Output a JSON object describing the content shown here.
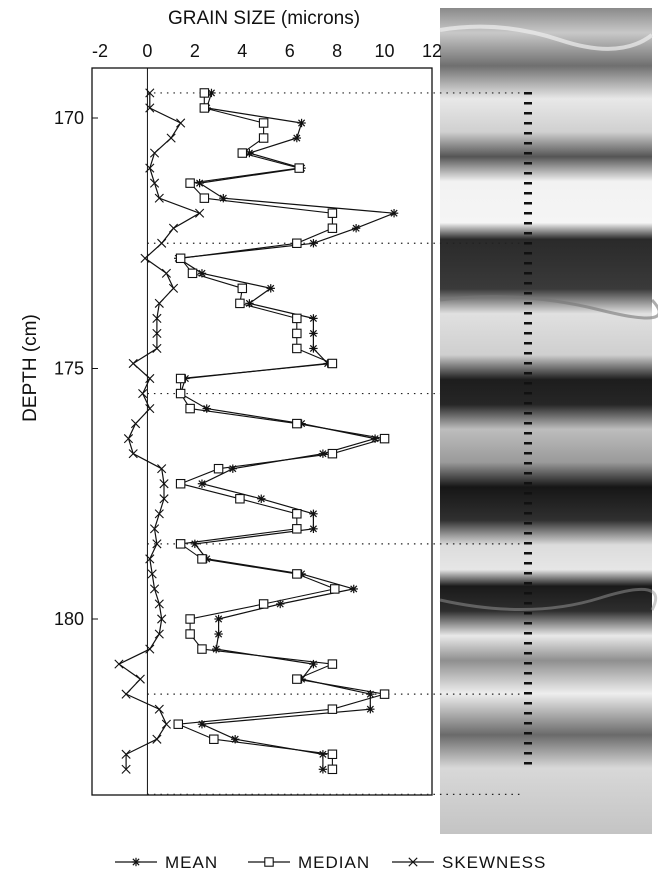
{
  "chart_data": {
    "type": "line",
    "title": "",
    "xlabel": "GRAIN SIZE (microns)",
    "ylabel": "DEPTH (cm)",
    "x_axis_position": "top",
    "y_inverted": true,
    "xlim": [
      -2,
      12
    ],
    "ylim": [
      168.5,
      184
    ],
    "x_ticks": [
      "-2",
      "0",
      "2",
      "4",
      "6",
      "8",
      "10",
      "12"
    ],
    "y_ticks": [
      "170",
      "175",
      "180"
    ],
    "grid": false,
    "horizontal_guides_depth": [
      169.5,
      172.5,
      175.5,
      178.5,
      181.5,
      183.5
    ],
    "legend_placement": "bottom",
    "series": [
      {
        "name": "MEAN",
        "marker": "asterisk",
        "points": [
          [
            2.7,
            169.5
          ],
          [
            2.5,
            169.8
          ],
          [
            6.5,
            170.1
          ],
          [
            6.3,
            170.4
          ],
          [
            4.3,
            170.7
          ],
          [
            6.5,
            171.0
          ],
          [
            2.2,
            171.3
          ],
          [
            3.2,
            171.6
          ],
          [
            10.4,
            171.9
          ],
          [
            8.8,
            172.2
          ],
          [
            7.0,
            172.5
          ],
          [
            1.3,
            172.8
          ],
          [
            2.3,
            173.1
          ],
          [
            5.2,
            173.4
          ],
          [
            4.3,
            173.7
          ],
          [
            7.0,
            174.0
          ],
          [
            7.0,
            174.3
          ],
          [
            7.0,
            174.6
          ],
          [
            7.6,
            174.9
          ],
          [
            1.6,
            175.2
          ],
          [
            1.4,
            175.5
          ],
          [
            2.5,
            175.8
          ],
          [
            6.5,
            176.1
          ],
          [
            9.6,
            176.4
          ],
          [
            7.4,
            176.7
          ],
          [
            3.6,
            177.0
          ],
          [
            2.3,
            177.3
          ],
          [
            4.8,
            177.6
          ],
          [
            7.0,
            177.9
          ],
          [
            7.0,
            178.2
          ],
          [
            2.0,
            178.5
          ],
          [
            2.5,
            178.8
          ],
          [
            6.5,
            179.1
          ],
          [
            8.7,
            179.4
          ],
          [
            5.6,
            179.7
          ],
          [
            3.0,
            180.0
          ],
          [
            3.0,
            180.3
          ],
          [
            2.9,
            180.6
          ],
          [
            7.0,
            180.9
          ],
          [
            6.5,
            181.2
          ],
          [
            9.4,
            181.5
          ],
          [
            9.4,
            181.8
          ],
          [
            2.3,
            182.1
          ],
          [
            3.7,
            182.4
          ],
          [
            7.4,
            182.7
          ],
          [
            7.4,
            183.0
          ]
        ]
      },
      {
        "name": "MEDIAN",
        "marker": "square",
        "points": [
          [
            2.4,
            169.5
          ],
          [
            2.4,
            169.8
          ],
          [
            4.9,
            170.1
          ],
          [
            4.9,
            170.4
          ],
          [
            4.0,
            170.7
          ],
          [
            6.4,
            171.0
          ],
          [
            1.8,
            171.3
          ],
          [
            2.4,
            171.6
          ],
          [
            7.8,
            171.9
          ],
          [
            7.8,
            172.2
          ],
          [
            6.3,
            172.5
          ],
          [
            1.4,
            172.8
          ],
          [
            1.9,
            173.1
          ],
          [
            4.0,
            173.4
          ],
          [
            3.9,
            173.7
          ],
          [
            6.3,
            174.0
          ],
          [
            6.3,
            174.3
          ],
          [
            6.3,
            174.6
          ],
          [
            7.8,
            174.9
          ],
          [
            1.4,
            175.2
          ],
          [
            1.4,
            175.5
          ],
          [
            1.8,
            175.8
          ],
          [
            6.3,
            176.1
          ],
          [
            10.0,
            176.4
          ],
          [
            7.8,
            176.7
          ],
          [
            3.0,
            177.0
          ],
          [
            1.4,
            177.3
          ],
          [
            3.9,
            177.6
          ],
          [
            6.3,
            177.9
          ],
          [
            6.3,
            178.2
          ],
          [
            1.4,
            178.5
          ],
          [
            2.3,
            178.8
          ],
          [
            6.3,
            179.1
          ],
          [
            7.9,
            179.4
          ],
          [
            4.9,
            179.7
          ],
          [
            1.8,
            180.0
          ],
          [
            1.8,
            180.3
          ],
          [
            2.3,
            180.6
          ],
          [
            7.8,
            180.9
          ],
          [
            6.3,
            181.2
          ],
          [
            10.0,
            181.5
          ],
          [
            7.8,
            181.8
          ],
          [
            1.3,
            182.1
          ],
          [
            2.8,
            182.4
          ],
          [
            7.8,
            182.7
          ],
          [
            7.8,
            183.0
          ]
        ]
      },
      {
        "name": "SKEWNESS",
        "marker": "x",
        "points": [
          [
            0.1,
            169.5
          ],
          [
            0.1,
            169.8
          ],
          [
            1.4,
            170.1
          ],
          [
            1.0,
            170.4
          ],
          [
            0.3,
            170.7
          ],
          [
            0.1,
            171.0
          ],
          [
            0.3,
            171.3
          ],
          [
            0.5,
            171.6
          ],
          [
            2.2,
            171.9
          ],
          [
            1.1,
            172.2
          ],
          [
            0.6,
            172.5
          ],
          [
            -0.1,
            172.8
          ],
          [
            0.8,
            173.1
          ],
          [
            1.1,
            173.4
          ],
          [
            0.5,
            173.7
          ],
          [
            0.4,
            174.0
          ],
          [
            0.4,
            174.3
          ],
          [
            0.4,
            174.6
          ],
          [
            -0.6,
            174.9
          ],
          [
            0.1,
            175.2
          ],
          [
            -0.2,
            175.5
          ],
          [
            0.1,
            175.8
          ],
          [
            -0.5,
            176.1
          ],
          [
            -0.8,
            176.4
          ],
          [
            -0.6,
            176.7
          ],
          [
            0.6,
            177.0
          ],
          [
            0.7,
            177.3
          ],
          [
            0.7,
            177.6
          ],
          [
            0.5,
            177.9
          ],
          [
            0.3,
            178.2
          ],
          [
            0.4,
            178.5
          ],
          [
            0.1,
            178.8
          ],
          [
            0.2,
            179.1
          ],
          [
            0.3,
            179.4
          ],
          [
            0.5,
            179.7
          ],
          [
            0.6,
            180.0
          ],
          [
            0.5,
            180.3
          ],
          [
            0.1,
            180.6
          ],
          [
            -1.2,
            180.9
          ],
          [
            -0.3,
            181.2
          ],
          [
            -0.9,
            181.5
          ],
          [
            0.5,
            181.8
          ],
          [
            0.8,
            182.1
          ],
          [
            0.4,
            182.4
          ],
          [
            -0.9,
            182.7
          ],
          [
            -0.9,
            183.0
          ]
        ]
      }
    ]
  }
}
